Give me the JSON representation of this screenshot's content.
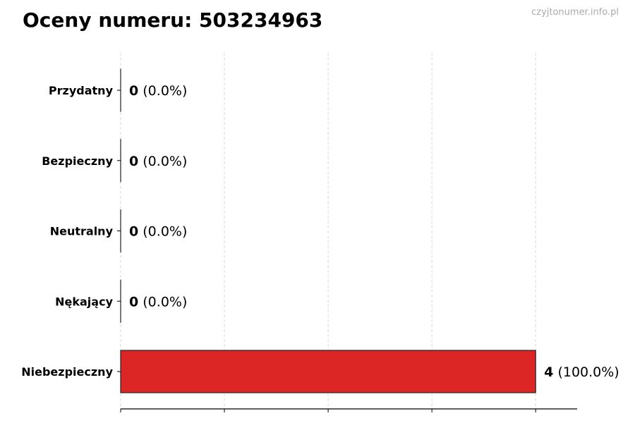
{
  "chart_data": {
    "type": "bar",
    "orientation": "horizontal",
    "title": "Oceny numeru: 503234963",
    "watermark": "czyjtonumer.info.pl",
    "categories": [
      "Przydatny",
      "Bezpieczny",
      "Neutralny",
      "Nękający",
      "Niebezpieczny"
    ],
    "values": [
      0,
      0,
      0,
      0,
      4
    ],
    "labels": [
      {
        "count": "0",
        "pct": "(0.0%)"
      },
      {
        "count": "0",
        "pct": "(0.0%)"
      },
      {
        "count": "0",
        "pct": "(0.0%)"
      },
      {
        "count": "0",
        "pct": "(0.0%)"
      },
      {
        "count": "4",
        "pct": "(100.0%)"
      }
    ],
    "bar_color": "#dc2626",
    "xlim": [
      0,
      4.4
    ],
    "xticks": [
      0,
      1,
      2,
      3,
      4
    ],
    "xtick_labels_shown": false,
    "grid": "x-dashed",
    "xlabel": "",
    "ylabel": ""
  }
}
